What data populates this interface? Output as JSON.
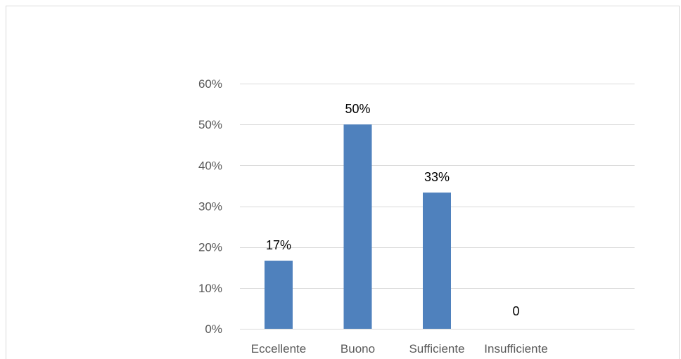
{
  "chart_data": {
    "type": "bar",
    "title": "",
    "xlabel": "",
    "ylabel": "",
    "categories": [
      "Eccellente",
      "Buono",
      "Sufficiente",
      "Insufficiente"
    ],
    "series": [
      {
        "values": [
          16.67,
          50,
          33.33,
          0
        ]
      }
    ],
    "data_labels": [
      "17%",
      "50%",
      "33%",
      "0"
    ],
    "ylim": [
      0,
      60
    ],
    "y_ticks": [
      0,
      10,
      20,
      30,
      40,
      50,
      60
    ],
    "y_tick_labels": [
      "0%",
      "10%",
      "20%",
      "30%",
      "40%",
      "50%",
      "60%"
    ],
    "grid": true,
    "legend": "none",
    "colors": {
      "bar": "#4f81bd",
      "grid": "#d9d9d9",
      "axis_text": "#595959",
      "data_label_text": "#000000",
      "border": "#d9d9d9"
    }
  }
}
